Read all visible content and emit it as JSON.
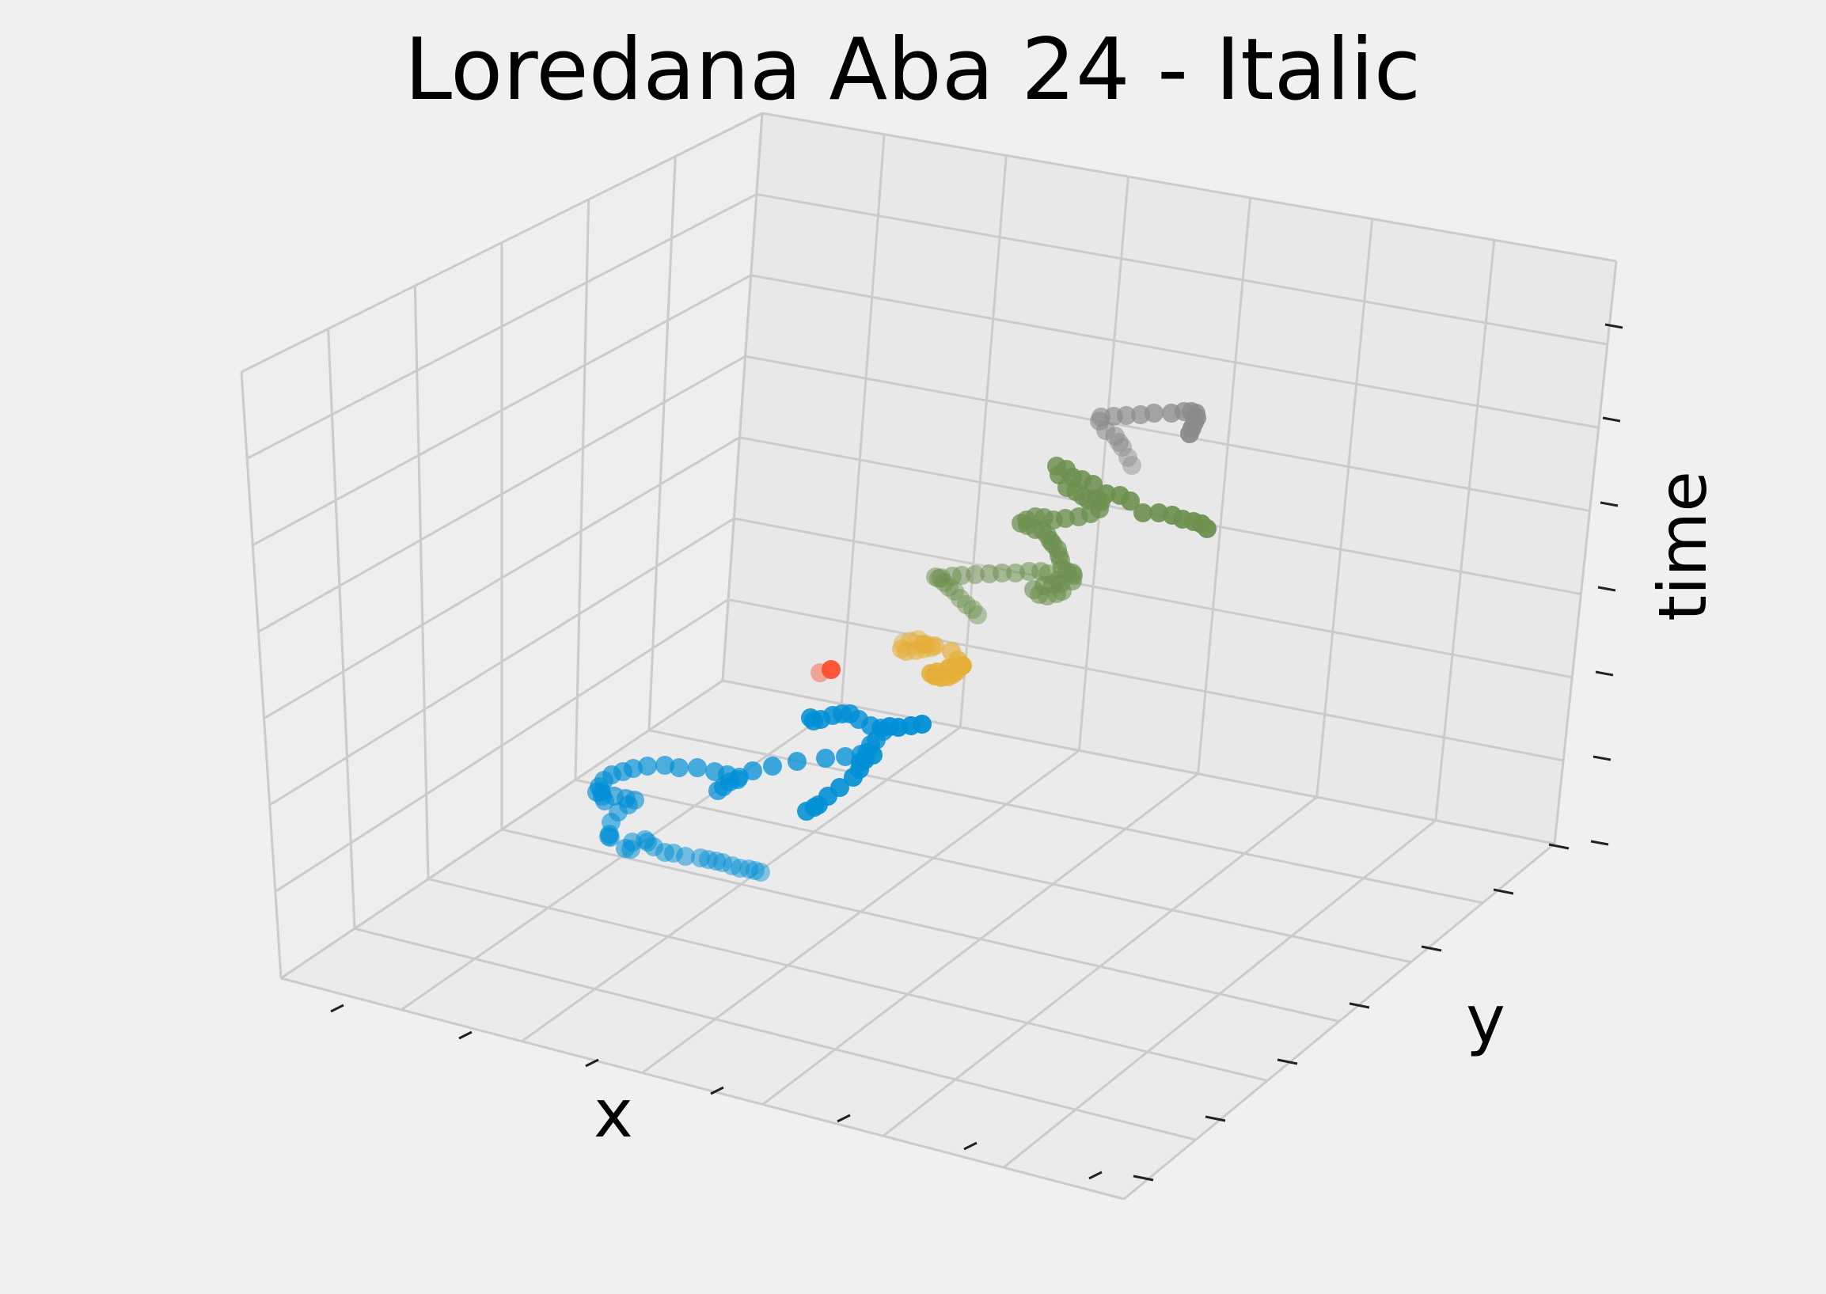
{
  "chart_data": {
    "type": "scatter3d",
    "title": "Loredana Aba 24 - Italic",
    "xlabel": "x",
    "ylabel": "y",
    "zlabel": "time",
    "grid": true,
    "tick_labels_shown": false,
    "series": [
      {
        "color": "#008fd5",
        "points": [
          [
            961,
            1102
          ],
          [
            954,
            1100
          ],
          [
            946,
            1098
          ],
          [
            935,
            1097
          ],
          [
            925,
            1094
          ],
          [
            913,
            1090
          ],
          [
            905,
            1088
          ],
          [
            895,
            1086
          ],
          [
            885,
            1084
          ],
          [
            866,
            1082
          ],
          [
            851,
            1078
          ],
          [
            840,
            1077
          ],
          [
            826,
            1070
          ],
          [
            818,
            1064
          ],
          [
            815,
            1061
          ],
          [
            799,
            1064
          ],
          [
            797,
            1073
          ],
          [
            790,
            1072
          ],
          [
            771,
            1058
          ],
          [
            769,
            1057
          ],
          [
            770,
            1054
          ],
          [
            772,
            1039
          ],
          [
            781,
            1026
          ],
          [
            794,
            1017
          ],
          [
            802,
            1011
          ],
          [
            791,
            1009
          ],
          [
            776,
            1006
          ],
          [
            764,
            1012
          ],
          [
            761,
            1006
          ],
          [
            760,
            1000
          ],
          [
            757,
            994
          ],
          [
            754,
            1001
          ],
          [
            763,
            986
          ],
          [
            773,
            979
          ],
          [
            787,
            975
          ],
          [
            800,
            971
          ],
          [
            818,
            968
          ],
          [
            840,
            967
          ],
          [
            858,
            970
          ],
          [
            881,
            970
          ],
          [
            903,
            975
          ],
          [
            919,
            979
          ],
          [
            934,
            982
          ],
          [
            907,
            999
          ],
          [
            914,
            994
          ],
          [
            922,
            988
          ],
          [
            932,
            985
          ],
          [
            951,
            974
          ],
          [
            976,
            968
          ],
          [
            1007,
            962
          ],
          [
            1043,
            958
          ],
          [
            1068,
            956
          ],
          [
            1088,
            953
          ],
          [
            1095,
            951
          ],
          [
            1100,
            941
          ],
          [
            1107,
            935
          ],
          [
            1116,
            924
          ],
          [
            1113,
            920
          ],
          [
            1100,
            917
          ],
          [
            1085,
            909
          ],
          [
            1074,
            902
          ],
          [
            1064,
            902
          ],
          [
            1052,
            904
          ],
          [
            1037,
            909
          ],
          [
            1028,
            911
          ],
          [
            1024,
            907
          ],
          [
            1019,
            1025
          ],
          [
            1029,
            1020
          ],
          [
            1034,
            1017
          ],
          [
            1046,
            1006
          ],
          [
            1061,
            995
          ],
          [
            1078,
            982
          ],
          [
            1086,
            972
          ],
          [
            1087,
            963
          ],
          [
            1093,
            960
          ],
          [
            1103,
            954
          ],
          [
            1124,
            918
          ],
          [
            1135,
            919
          ],
          [
            1151,
            917
          ],
          [
            1165,
            915
          ]
        ]
      },
      {
        "color": "#fc4f30",
        "points": [
          [
            1036,
            850
          ],
          [
            1050,
            846
          ]
        ]
      },
      {
        "color": "#e5ae38",
        "points": [
          [
            1141,
            813
          ],
          [
            1150,
            810
          ],
          [
            1160,
            808
          ],
          [
            1170,
            814
          ],
          [
            1177,
            818
          ],
          [
            1167,
            820
          ],
          [
            1157,
            822
          ],
          [
            1145,
            823
          ],
          [
            1139,
            820
          ],
          [
            1166,
            814
          ],
          [
            1181,
            816
          ],
          [
            1202,
            823
          ],
          [
            1210,
            834
          ],
          [
            1214,
            842
          ],
          [
            1209,
            848
          ],
          [
            1204,
            852
          ],
          [
            1198,
            855
          ],
          [
            1189,
            856
          ],
          [
            1181,
            854
          ],
          [
            1176,
            851
          ],
          [
            1184,
            849
          ],
          [
            1199,
            844
          ],
          [
            1207,
            843
          ],
          [
            1216,
            841
          ]
        ]
      },
      {
        "color": "#6d904f",
        "points": [
          [
            1235,
            777
          ],
          [
            1229,
            770
          ],
          [
            1221,
            764
          ],
          [
            1213,
            756
          ],
          [
            1206,
            747
          ],
          [
            1199,
            742
          ],
          [
            1193,
            736
          ],
          [
            1186,
            731
          ],
          [
            1182,
            729
          ],
          [
            1189,
            730
          ],
          [
            1203,
            728
          ],
          [
            1215,
            727
          ],
          [
            1232,
            726
          ],
          [
            1250,
            725
          ],
          [
            1266,
            724
          ],
          [
            1283,
            724
          ],
          [
            1300,
            722
          ],
          [
            1315,
            722
          ],
          [
            1324,
            725
          ],
          [
            1336,
            733
          ],
          [
            1342,
            747
          ],
          [
            1335,
            750
          ],
          [
            1323,
            753
          ],
          [
            1313,
            751
          ],
          [
            1306,
            745
          ],
          [
            1319,
            740
          ],
          [
            1330,
            738
          ],
          [
            1340,
            738
          ],
          [
            1355,
            734
          ],
          [
            1356,
            727
          ],
          [
            1355,
            724
          ],
          [
            1348,
            722
          ],
          [
            1342,
            718
          ],
          [
            1340,
            708
          ],
          [
            1338,
            702
          ],
          [
            1336,
            694
          ],
          [
            1330,
            687
          ],
          [
            1327,
            683
          ],
          [
            1323,
            676
          ],
          [
            1317,
            670
          ],
          [
            1308,
            669
          ],
          [
            1298,
            664
          ],
          [
            1290,
            661
          ],
          [
            1297,
            657
          ],
          [
            1308,
            653
          ],
          [
            1319,
            654
          ],
          [
            1331,
            657
          ],
          [
            1346,
            655
          ],
          [
            1363,
            653
          ],
          [
            1378,
            649
          ],
          [
            1389,
            643
          ],
          [
            1391,
            634
          ],
          [
            1386,
            630
          ],
          [
            1375,
            632
          ],
          [
            1368,
            627
          ],
          [
            1359,
            621
          ],
          [
            1348,
            616
          ],
          [
            1338,
            600
          ],
          [
            1335,
            589
          ],
          [
            1347,
            593
          ],
          [
            1355,
            603
          ],
          [
            1367,
            606
          ],
          [
            1381,
            612
          ],
          [
            1398,
            624
          ],
          [
            1415,
            626
          ],
          [
            1428,
            633
          ],
          [
            1444,
            648
          ],
          [
            1464,
            648
          ],
          [
            1481,
            651
          ],
          [
            1494,
            656
          ],
          [
            1508,
            659
          ],
          [
            1518,
            662
          ],
          [
            1525,
            668
          ]
        ]
      },
      {
        "color": "#8b8b8b",
        "points": [
          [
            1430,
            588
          ],
          [
            1425,
            578
          ],
          [
            1418,
            565
          ],
          [
            1414,
            559
          ],
          [
            1409,
            551
          ],
          [
            1397,
            544
          ],
          [
            1389,
            532
          ],
          [
            1391,
            527
          ],
          [
            1407,
            526
          ],
          [
            1423,
            525
          ],
          [
            1441,
            524
          ],
          [
            1458,
            522
          ],
          [
            1480,
            522
          ],
          [
            1496,
            520
          ],
          [
            1505,
            520
          ],
          [
            1511,
            522
          ],
          [
            1512,
            528
          ],
          [
            1509,
            534
          ],
          [
            1506,
            541
          ],
          [
            1503,
            548
          ]
        ]
      }
    ]
  }
}
